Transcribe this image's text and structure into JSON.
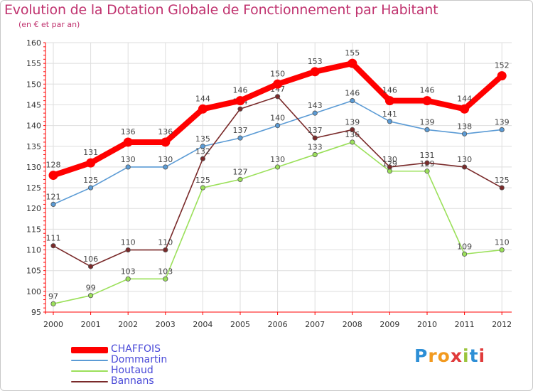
{
  "header": {
    "title": "Evolution de la Dotation Globale de Fonctionnement par Habitant",
    "subtitle": "(en € et par an)"
  },
  "logo": {
    "letters": [
      "P",
      "r",
      "o",
      "x",
      "i",
      "t",
      "i"
    ],
    "colors": [
      "#2e8fd6",
      "#f29a1f",
      "#f29a1f",
      "#e03a3a",
      "#9bc53d",
      "#2e8fd6",
      "#e03a3a"
    ]
  },
  "colors": {
    "axis": "#ff0000",
    "grid": "#dedede",
    "tick_text": "#333333",
    "data_label": "#444444"
  },
  "chart_data": {
    "type": "line",
    "title": "Evolution de la Dotation Globale de Fonctionnement par Habitant",
    "subtitle": "(en € et par an)",
    "xlabel": "",
    "ylabel": "",
    "x": [
      "2000",
      "2001",
      "2002",
      "2003",
      "2004",
      "2005",
      "2006",
      "2007",
      "2008",
      "2009",
      "2010",
      "2011",
      "2012"
    ],
    "ylim": [
      95,
      160
    ],
    "yticks": [
      95,
      100,
      105,
      110,
      115,
      120,
      125,
      130,
      135,
      140,
      145,
      150,
      155,
      160
    ],
    "grid": true,
    "legend_position": "bottom-left",
    "series": [
      {
        "name": "CHAFFOIS",
        "color": "#ff0000",
        "values": [
          128,
          131,
          136,
          136,
          144,
          146,
          150,
          153,
          155,
          146,
          146,
          144,
          152
        ]
      },
      {
        "name": "Dommartin",
        "color": "#5b9bd5",
        "values": [
          121,
          125,
          130,
          130,
          135,
          137,
          140,
          143,
          146,
          141,
          139,
          138,
          139
        ]
      },
      {
        "name": "Houtaud",
        "color": "#9be05a",
        "values": [
          97,
          99,
          103,
          103,
          125,
          127,
          130,
          133,
          136,
          129,
          129,
          109,
          110
        ]
      },
      {
        "name": "Bannans",
        "color": "#7a2a2a",
        "values": [
          111,
          106,
          110,
          110,
          132,
          144,
          147,
          137,
          139,
          130,
          131,
          130,
          125
        ]
      }
    ]
  }
}
